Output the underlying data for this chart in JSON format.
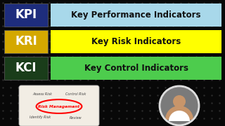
{
  "background_color": "#080808",
  "dot_color": "#2a2a2a",
  "rows": [
    {
      "label": "KPI",
      "label_bg": "#1e2d7d",
      "label_text_color": "#ffffff",
      "bar_bg": "#a8d8ea",
      "bar_text": "Key Performance Indicators",
      "bar_text_color": "#111111"
    },
    {
      "label": "KRI",
      "label_bg": "#d4a800",
      "label_text_color": "#ffffff",
      "bar_bg": "#ffff00",
      "bar_text": "Key Risk Indicators",
      "bar_text_color": "#111111"
    },
    {
      "label": "KCI",
      "label_bg": "#1a3d1a",
      "label_text_color": "#ffffff",
      "bar_bg": "#4dcc4d",
      "bar_text": "Key Control Indicators",
      "bar_text_color": "#111111"
    }
  ],
  "figsize": [
    3.2,
    1.8
  ],
  "dpi": 100
}
